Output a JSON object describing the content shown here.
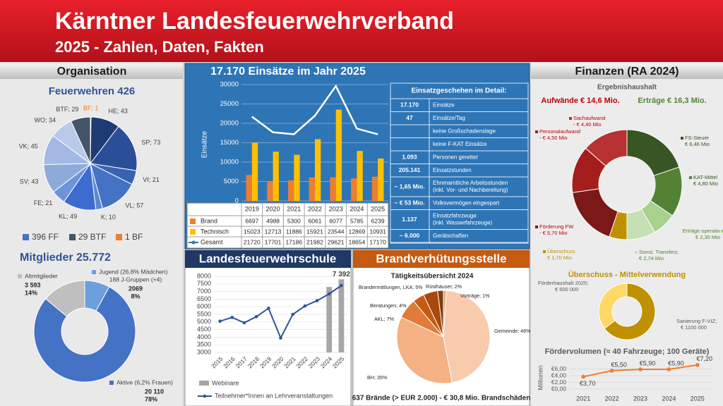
{
  "header": {
    "title": "Kärntner Landesfeuerwehrverband",
    "subtitle": "2025 - Zahlen, Daten, Fakten"
  },
  "sections": {
    "organisation": "Organisation",
    "finanzen": "Finanzen (RA 2024)"
  },
  "table": {
    "title": "Einsatzgeschehen im Detail:",
    "rows": [
      {
        "value": "17.170",
        "label": "Einsätze"
      },
      {
        "value": "47",
        "label": "Einsätze/Tag"
      },
      {
        "label": "keine Großschadenslage"
      },
      {
        "label": "keine F-KAT Einsätze"
      },
      {
        "value": "1.093",
        "label": "Personen gerettet"
      },
      {
        "value": "205.141",
        "label": "Einsatzstunden"
      },
      {
        "value": "~ 1,65 Mio.",
        "label": [
          "Ehrenamtliche Arbeitsstunden",
          "(inkl. Vor- und Nachbereitung)"
        ]
      },
      {
        "value": "~ € 53 Mio.",
        "label": "Volksvermögen eingespart"
      },
      {
        "value": "1.137",
        "label": [
          "Einsatzfahrzeuge",
          "(inkl. Wasserfahrzeuge)"
        ]
      },
      {
        "value": "~ 6.000",
        "label": "Gerätschaften"
      }
    ]
  },
  "chart_data": [
    {
      "type": "pie",
      "title": "Feuerwehren 426",
      "values": [
        1,
        43,
        73,
        21,
        57,
        10,
        49,
        21,
        43,
        45,
        34,
        29
      ],
      "value_labels": [
        "BF; 1",
        "HE; 43",
        "SP; 73",
        "VI; 21",
        "VL; 57",
        "K; 10",
        "KL; 49",
        "FE; 21",
        "SV; 43",
        "VK; 45",
        "WO; 34",
        "BTF; 29"
      ],
      "colors": [
        "#ed7d31",
        "#1f3b73",
        "#2a4f98",
        "#3a62b4",
        "#4472c4",
        "#5e87d2",
        "#3d6bd0",
        "#6f93d8",
        "#8eaadb",
        "#a3b9e4",
        "#b8c9ea",
        "#44546a"
      ],
      "legend": [
        {
          "label": "396 FF",
          "color": "#4472c4"
        },
        {
          "label": "29 BTF",
          "color": "#44546a"
        },
        {
          "label": "1 BF",
          "color": "#ed7d31"
        }
      ]
    },
    {
      "type": "donut",
      "title": "Mitglieder 25.772",
      "categories": [
        "Jugend (26,8% Mädchen)",
        "Aktive (6,2% Frauen)",
        "Altmitglieder"
      ],
      "values": [
        2069,
        20110,
        3593
      ],
      "value_labels": [
        "2069",
        "20 110",
        "3 593"
      ],
      "percent_labels": [
        "8%",
        "78%",
        "14%"
      ],
      "annotations": [
        "188 J-Gruppen (+4)"
      ],
      "colors": [
        "#6d9fdc",
        "#4472c4",
        "#bfbfbf"
      ]
    },
    {
      "type": "bar",
      "title": "17.170 Einsätze im Jahr 2025",
      "y_label": "Einsätze",
      "categories": [
        "2019",
        "2020",
        "2021",
        "2022",
        "2023",
        "2024",
        "2025"
      ],
      "series": [
        {
          "name": "Brand",
          "type": "bar",
          "color": "#ed7d31",
          "values": [
            6697,
            4988,
            5300,
            6061,
            6077,
            5785,
            6239
          ]
        },
        {
          "name": "Technisch",
          "type": "bar",
          "color": "#ffc000",
          "values": [
            15023,
            12713,
            11886,
            15921,
            23544,
            12869,
            10931
          ]
        },
        {
          "name": "Gesamt",
          "type": "line",
          "color": "#ffffff",
          "values": [
            21720,
            17701,
            17186,
            21982,
            29621,
            18654,
            17170
          ]
        }
      ],
      "ylim": [
        0,
        30000
      ],
      "yticks": [
        0,
        5000,
        10000,
        15000,
        20000,
        25000,
        30000
      ],
      "grid": true
    },
    {
      "type": "line",
      "title": "Landesfeuerwehrschule",
      "categories": [
        "2015",
        "2016",
        "2017",
        "2018",
        "2019",
        "2020",
        "2021",
        "2022",
        "2023",
        "2024",
        "2025"
      ],
      "series": [
        {
          "name": "Webinare",
          "type": "bar",
          "color": "#a6a6a6",
          "values": [
            null,
            null,
            null,
            null,
            null,
            null,
            null,
            null,
            null,
            7300,
            7800
          ]
        },
        {
          "name": "Teilnehmer*Innen an Lehrveranstaltungen",
          "type": "line",
          "color": "#2f5597",
          "values": [
            5050,
            5300,
            4950,
            5350,
            5900,
            3950,
            5500,
            6050,
            6400,
            6850,
            7392
          ],
          "value_labels": [
            null,
            null,
            null,
            null,
            null,
            null,
            null,
            null,
            null,
            null,
            "7 392"
          ]
        }
      ],
      "ylim": [
        3000,
        8000
      ],
      "yticks": [
        3000,
        3500,
        4000,
        4500,
        5000,
        5500,
        6000,
        6500,
        7000,
        7500,
        8000
      ],
      "grid": true
    },
    {
      "type": "pie",
      "title": "Brandverhütungsstelle",
      "subtitle": "Tätigkeitsübersicht 2024",
      "footer": "637 Brände (> EUR 2.000) - € 30,8 Mio. Brandschäden",
      "values": [
        1,
        46,
        35,
        7,
        4,
        5,
        2
      ],
      "value_labels": [
        "Vorträge; 1%",
        "Gemeinde; 46%",
        "BH; 35%",
        "AKL; 7%",
        "Beratungen; 4%",
        "Brandermittlungen, LKA; 5%",
        "Rüsthäuser; 2%"
      ],
      "colors": [
        "#e2a57c",
        "#f8cbad",
        "#f4b183",
        "#e07b39",
        "#c55a11",
        "#a8480d",
        "#843c0c"
      ]
    },
    {
      "type": "donut",
      "title": "Ergebnishaushalt",
      "annotations": [
        "Aufwände € 14,6 Mio.",
        "Erträge € 16,3 Mio."
      ],
      "categories": [
        "FS-Steuer",
        "KAT-Mittel",
        "Erträge operativ",
        "Sonst. Transferz.",
        "Überschuss",
        "Förderung FW",
        "Personalaufwand",
        "Sachaufwand"
      ],
      "values": [
        6.46,
        4.8,
        2.3,
        2.74,
        1.7,
        5.7,
        4.5,
        4.4
      ],
      "value_labels": [
        "€ 6,46 Mio",
        "€ 4,80 Mio",
        "€ 2,30 Mio",
        "€ 2,74 Mio",
        "€ 1,70 Mio",
        "- € 5,70 Mio",
        "- € 4,50 Mio",
        "- € 4,40 Mio"
      ],
      "colors": [
        "#375623",
        "#548235",
        "#a9d18e",
        "#c5e0b4",
        "#bf9000",
        "#7b1818",
        "#a51d1d",
        "#b83232"
      ]
    },
    {
      "type": "donut",
      "title": "Überschuss - Mittelverwendung",
      "categories": [
        "Sanierung F-VIZ;",
        "Förderhaushalt 2025;"
      ],
      "values": [
        1100000,
        600000
      ],
      "value_labels": [
        "€ 1100 000",
        "€ 600 000"
      ],
      "colors": [
        "#bf9000",
        "#ffd966"
      ]
    },
    {
      "type": "line",
      "title": "Fördervolumen (≈ 40 Fahrzeuge; 100 Geräte)",
      "y_label": "Millionen",
      "categories": [
        "2021",
        "2022",
        "2023",
        "2024",
        "2025"
      ],
      "values": [
        3.7,
        5.5,
        5.9,
        5.9,
        7.2
      ],
      "value_labels": [
        "€3,70",
        "€5,50",
        "€5,90",
        "€5,90",
        "€7,20"
      ],
      "color": "#ed7d31",
      "ylim": [
        0,
        8
      ],
      "yticks": [
        {
          "value": 0,
          "label": "€0,00"
        },
        {
          "value": 2,
          "label": "€2,00"
        },
        {
          "value": 4,
          "label": "€4,00"
        },
        {
          "value": 6,
          "label": "€6,00"
        }
      ],
      "grid": true
    }
  ]
}
